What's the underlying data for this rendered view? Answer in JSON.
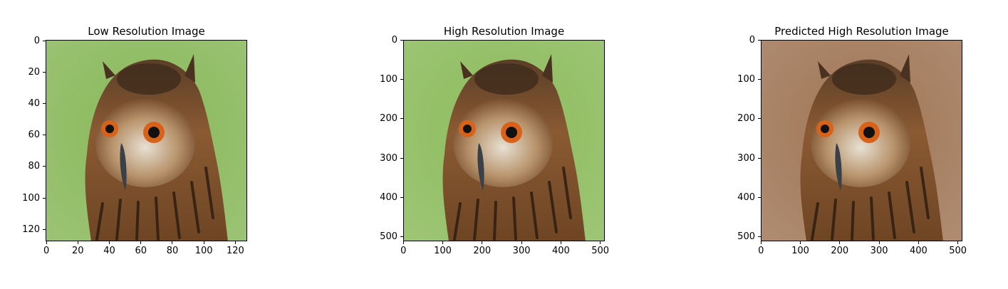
{
  "panels": [
    {
      "title": "Low Resolution Image",
      "background_color": "#89b85a",
      "image_size": 128,
      "yticks": [
        "0",
        "20",
        "40",
        "60",
        "80",
        "100",
        "120"
      ],
      "ytick_values": [
        0,
        20,
        40,
        60,
        80,
        100,
        120
      ],
      "xticks": [
        "0",
        "20",
        "40",
        "60",
        "80",
        "100",
        "120"
      ],
      "xtick_values": [
        0,
        20,
        40,
        60,
        80,
        100,
        120
      ]
    },
    {
      "title": "High Resolution Image",
      "background_color": "#8cbb5c",
      "image_size": 512,
      "yticks": [
        "0",
        "100",
        "200",
        "300",
        "400",
        "500"
      ],
      "ytick_values": [
        0,
        100,
        200,
        300,
        400,
        500
      ],
      "xticks": [
        "0",
        "100",
        "200",
        "300",
        "400",
        "500"
      ],
      "xtick_values": [
        0,
        100,
        200,
        300,
        400,
        500
      ]
    },
    {
      "title": "Predicted High Resolution Image",
      "background_color": "#a07656",
      "image_size": 512,
      "yticks": [
        "0",
        "100",
        "200",
        "300",
        "400",
        "500"
      ],
      "ytick_values": [
        0,
        100,
        200,
        300,
        400,
        500
      ],
      "xticks": [
        "0",
        "100",
        "200",
        "300",
        "400",
        "500"
      ],
      "xtick_values": [
        0,
        100,
        200,
        300,
        400,
        500
      ]
    }
  ]
}
